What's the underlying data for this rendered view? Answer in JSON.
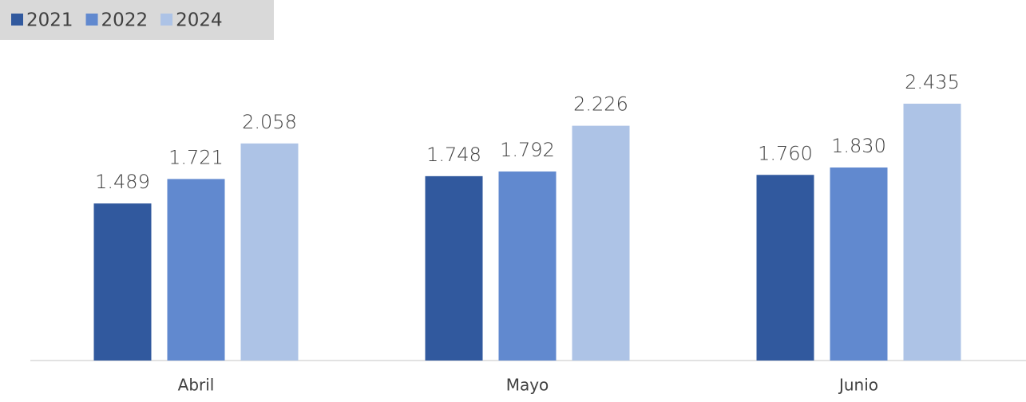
{
  "chart_data": {
    "type": "bar",
    "categories": [
      "Abril",
      "Mayo",
      "Junio"
    ],
    "series": [
      {
        "name": "2021",
        "color": "#31599e",
        "values": [
          1489,
          1748,
          1760
        ],
        "value_labels": [
          "1.489",
          "1.748",
          "1.760"
        ]
      },
      {
        "name": "2022",
        "color": "#6189cf",
        "values": [
          1721,
          1792,
          1830
        ],
        "value_labels": [
          "1.721",
          "1.792",
          "1.830"
        ]
      },
      {
        "name": "2024",
        "color": "#adc3e6",
        "values": [
          2058,
          2226,
          2435
        ],
        "value_labels": [
          "2.058",
          "2.226",
          "2.435"
        ]
      }
    ],
    "legend": "top-left"
  }
}
